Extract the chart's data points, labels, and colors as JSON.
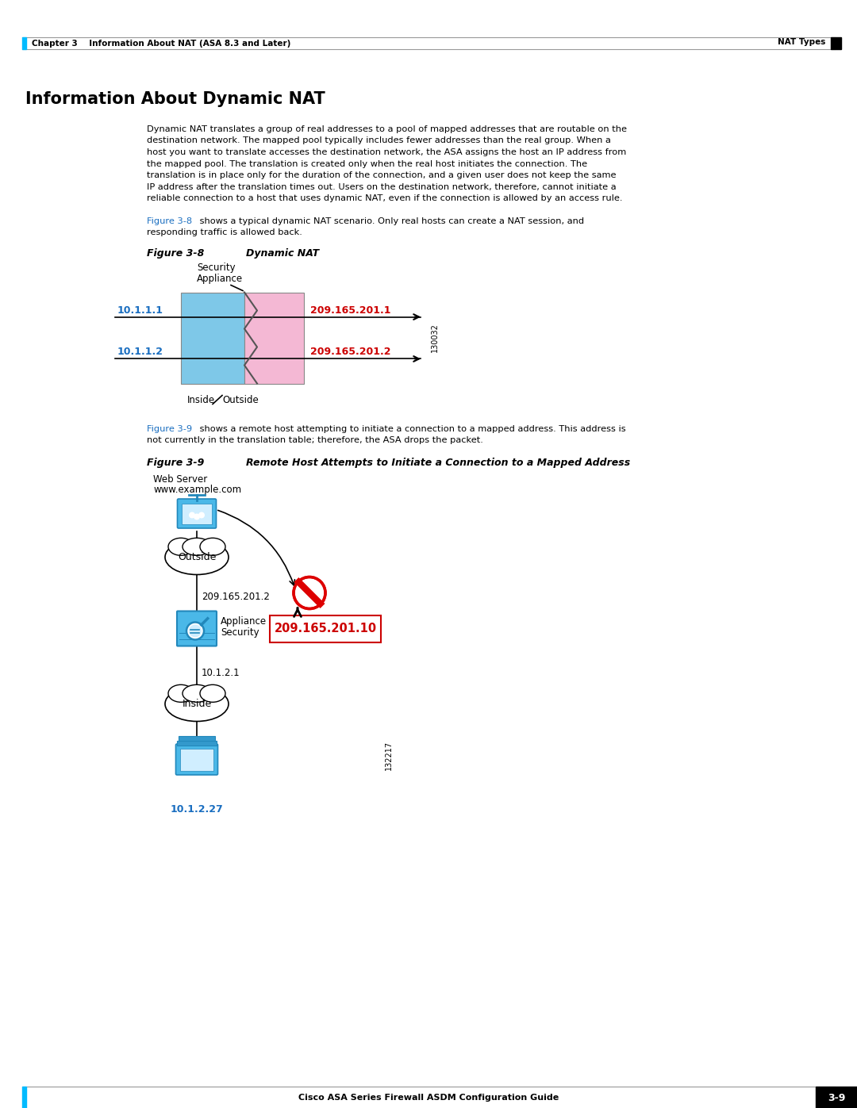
{
  "page_width": 10.8,
  "page_height": 13.97,
  "bg_color": "#ffffff",
  "header_text_left": "Chapter 3    Information About NAT (ASA 8.3 and Later)",
  "header_text_right": "NAT Types",
  "section_title": "Information About Dynamic NAT",
  "body_text_lines": [
    "Dynamic NAT translates a group of real addresses to a pool of mapped addresses that are routable on the",
    "destination network. The mapped pool typically includes fewer addresses than the real group. When a",
    "host you want to translate accesses the destination network, the ASA assigns the host an IP address from",
    "the mapped pool. The translation is created only when the real host initiates the connection. The",
    "translation is in place only for the duration of the connection, and a given user does not keep the same",
    "IP address after the translation times out. Users on the destination network, therefore, cannot initiate a",
    "reliable connection to a host that uses dynamic NAT, even if the connection is allowed by an access rule."
  ],
  "blue_color": "#1a6ec0",
  "red_color": "#cc0000",
  "link_color": "#1a6ec0",
  "footer_text": "Cisco ASA Series Firewall ASDM Configuration Guide",
  "page_number": "3-9",
  "inside_color": "#7ec8e8",
  "outside_color": "#f4b8d4",
  "fig38_ip_inside1": "10.1.1.1",
  "fig38_ip_inside2": "10.1.1.2",
  "fig38_ip_outside1": "209.165.201.1",
  "fig38_ip_outside2": "209.165.201.2",
  "fig38_serial": "130032",
  "fig39_ip1": "209.165.201.2",
  "fig39_ip2": "10.1.2.1",
  "fig39_mapped": "209.165.201.10",
  "fig39_client_ip": "10.1.2.27",
  "fig39_serial": "132217"
}
